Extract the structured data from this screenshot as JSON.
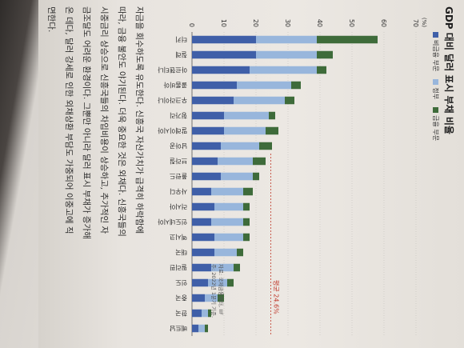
{
  "chart_data": {
    "type": "bar",
    "stacked": true,
    "orientation": "horizontal",
    "title": "GDP 대비 달러 표시 부채 비율",
    "unit_label": "(%)",
    "xlim": [
      0,
      70
    ],
    "ticks": [
      0,
      10,
      20,
      30,
      40,
      50,
      60,
      70
    ],
    "legend": [
      "비금융 부문",
      "정부",
      "금융 부문"
    ],
    "colors": {
      "nonfin": "#3f5fa8",
      "gov": "#98b6dc",
      "fin": "#3e6b3a"
    },
    "categories": [
      "터키",
      "칠레",
      "아르헨티나",
      "콜롬비아",
      "우크라이나",
      "헝가리",
      "말레이시아",
      "남아공",
      "브라질",
      "폴란드",
      "사우디",
      "러시아",
      "인도네시아",
      "멕시코",
      "태국",
      "필리핀",
      "인도",
      "중국",
      "한국",
      "베트남"
    ],
    "series": [
      {
        "name": "비금융 부문",
        "values": [
          20,
          20,
          18,
          14,
          13,
          10,
          10,
          9,
          8,
          9,
          6,
          7,
          6,
          7,
          7,
          6,
          5,
          4,
          3,
          2
        ]
      },
      {
        "name": "정부",
        "values": [
          19,
          19,
          21,
          17,
          16,
          14,
          13,
          12,
          11,
          10,
          10,
          9,
          10,
          9,
          7,
          7,
          6,
          4,
          2,
          2
        ]
      },
      {
        "name": "금융 부문",
        "values": [
          19,
          5,
          3,
          3,
          3,
          2,
          4,
          4,
          4,
          2,
          3,
          2,
          2,
          2,
          2,
          2,
          2,
          2,
          1,
          1
        ]
      }
    ],
    "average_line": {
      "value": 24.6,
      "label": "평균 24.6%"
    },
    "notes": [
      "자료: 국제금융센터, IIF",
      "주: 2022년 1분기 기준."
    ]
  },
  "body_text": [
    "자금을 회수하도록 유도한다. 신흥국 자산가치가 급격히 하락함에",
    "따라, 금융 불안도 야기된다. 더욱 중요한 것은 외채다. 신흥국들의",
    "시중금리 상승으로 신흥국들의 차입비용이 상승하고, 추가적인 자",
    "금조달도 어려운 환경이다. 그뿐만 아니라 달러 표시 부채가 증가해",
    "온 데다, 달러 강세로 인한 외채상환 부담도 가중되어 이중고에 직",
    "면한다."
  ]
}
